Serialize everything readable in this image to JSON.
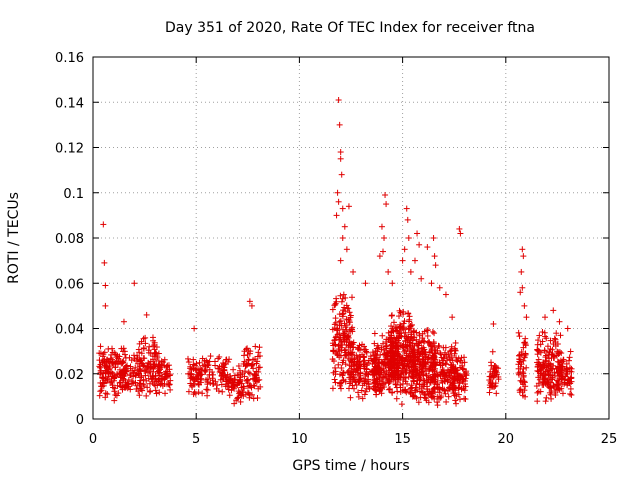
{
  "chart_data": {
    "type": "scatter",
    "title": "Day 351 of 2020, Rate Of TEC Index for receiver ftna",
    "xlabel": "GPS time / hours",
    "ylabel": "ROTI / TECUs",
    "xlim": [
      0,
      25
    ],
    "ylim": [
      0,
      0.16
    ],
    "xticks": [
      0,
      5,
      10,
      15,
      20,
      25
    ],
    "xtick_labels": [
      "0",
      "5",
      "10",
      "15",
      "20",
      "25"
    ],
    "yticks": [
      0,
      0.02,
      0.04,
      0.06,
      0.08,
      0.1,
      0.12,
      0.14,
      0.16
    ],
    "ytick_labels": [
      "0",
      "0.02",
      "0.04",
      "0.06",
      "0.08",
      "0.1",
      "0.12",
      "0.14",
      "0.16"
    ],
    "grid": true,
    "marker": "plus",
    "color": "#e00000",
    "clusters": [
      {
        "x": [
          0.3,
          1.6
        ],
        "y": [
          0.008,
          0.034
        ],
        "n": 160
      },
      {
        "x": [
          1.6,
          2.2
        ],
        "y": [
          0.01,
          0.03
        ],
        "n": 40
      },
      {
        "x": [
          2.2,
          3.1
        ],
        "y": [
          0.007,
          0.04
        ],
        "n": 110
      },
      {
        "x": [
          3.1,
          3.8
        ],
        "y": [
          0.01,
          0.03
        ],
        "n": 60
      },
      {
        "x": [
          4.6,
          5.4
        ],
        "y": [
          0.008,
          0.028
        ],
        "n": 60
      },
      {
        "x": [
          5.4,
          6.6
        ],
        "y": [
          0.008,
          0.03
        ],
        "n": 80
      },
      {
        "x": [
          6.6,
          7.3
        ],
        "y": [
          0.006,
          0.024
        ],
        "n": 50
      },
      {
        "x": [
          7.2,
          8.1
        ],
        "y": [
          0.008,
          0.035
        ],
        "n": 80
      },
      {
        "x": [
          11.6,
          12.6
        ],
        "y": [
          0.008,
          0.06
        ],
        "n": 160
      },
      {
        "x": [
          12.4,
          13.8
        ],
        "y": [
          0.008,
          0.035
        ],
        "n": 160
      },
      {
        "x": [
          13.6,
          14.8
        ],
        "y": [
          0.008,
          0.04
        ],
        "n": 180
      },
      {
        "x": [
          14.4,
          15.6
        ],
        "y": [
          0.006,
          0.05
        ],
        "n": 260
      },
      {
        "x": [
          15.4,
          16.6
        ],
        "y": [
          0.006,
          0.042
        ],
        "n": 220
      },
      {
        "x": [
          16.4,
          17.6
        ],
        "y": [
          0.005,
          0.035
        ],
        "n": 160
      },
      {
        "x": [
          17.4,
          18.1
        ],
        "y": [
          0.006,
          0.03
        ],
        "n": 70
      },
      {
        "x": [
          19.2,
          19.7
        ],
        "y": [
          0.01,
          0.03
        ],
        "n": 40
      },
      {
        "x": [
          20.6,
          21.0
        ],
        "y": [
          0.008,
          0.04
        ],
        "n": 50
      },
      {
        "x": [
          21.5,
          22.8
        ],
        "y": [
          0.006,
          0.04
        ],
        "n": 200
      },
      {
        "x": [
          22.8,
          23.2
        ],
        "y": [
          0.008,
          0.03
        ],
        "n": 40
      }
    ],
    "outliers": [
      {
        "x": 0.5,
        "y": 0.086
      },
      {
        "x": 0.55,
        "y": 0.069
      },
      {
        "x": 0.6,
        "y": 0.059
      },
      {
        "x": 0.6,
        "y": 0.05
      },
      {
        "x": 2.0,
        "y": 0.06
      },
      {
        "x": 1.5,
        "y": 0.043
      },
      {
        "x": 2.6,
        "y": 0.046
      },
      {
        "x": 4.9,
        "y": 0.04
      },
      {
        "x": 7.6,
        "y": 0.052
      },
      {
        "x": 7.7,
        "y": 0.05
      },
      {
        "x": 11.9,
        "y": 0.141
      },
      {
        "x": 11.95,
        "y": 0.13
      },
      {
        "x": 12.0,
        "y": 0.118
      },
      {
        "x": 12.0,
        "y": 0.115
      },
      {
        "x": 12.05,
        "y": 0.108
      },
      {
        "x": 11.85,
        "y": 0.1
      },
      {
        "x": 11.9,
        "y": 0.096
      },
      {
        "x": 12.1,
        "y": 0.093
      },
      {
        "x": 11.8,
        "y": 0.09
      },
      {
        "x": 12.2,
        "y": 0.085
      },
      {
        "x": 12.1,
        "y": 0.08
      },
      {
        "x": 12.3,
        "y": 0.075
      },
      {
        "x": 12.0,
        "y": 0.07
      },
      {
        "x": 12.4,
        "y": 0.094
      },
      {
        "x": 12.6,
        "y": 0.065
      },
      {
        "x": 13.2,
        "y": 0.06
      },
      {
        "x": 14.15,
        "y": 0.099
      },
      {
        "x": 14.2,
        "y": 0.095
      },
      {
        "x": 14.0,
        "y": 0.085
      },
      {
        "x": 14.1,
        "y": 0.08
      },
      {
        "x": 14.05,
        "y": 0.074
      },
      {
        "x": 13.9,
        "y": 0.072
      },
      {
        "x": 14.3,
        "y": 0.065
      },
      {
        "x": 14.5,
        "y": 0.06
      },
      {
        "x": 15.2,
        "y": 0.093
      },
      {
        "x": 15.25,
        "y": 0.088
      },
      {
        "x": 15.3,
        "y": 0.08
      },
      {
        "x": 15.1,
        "y": 0.075
      },
      {
        "x": 15.0,
        "y": 0.07
      },
      {
        "x": 15.4,
        "y": 0.065
      },
      {
        "x": 15.7,
        "y": 0.082
      },
      {
        "x": 15.8,
        "y": 0.077
      },
      {
        "x": 15.6,
        "y": 0.07
      },
      {
        "x": 15.9,
        "y": 0.062
      },
      {
        "x": 16.2,
        "y": 0.076
      },
      {
        "x": 16.5,
        "y": 0.08
      },
      {
        "x": 16.55,
        "y": 0.072
      },
      {
        "x": 16.6,
        "y": 0.068
      },
      {
        "x": 16.4,
        "y": 0.06
      },
      {
        "x": 16.8,
        "y": 0.058
      },
      {
        "x": 17.1,
        "y": 0.055
      },
      {
        "x": 17.4,
        "y": 0.045
      },
      {
        "x": 17.75,
        "y": 0.084
      },
      {
        "x": 17.8,
        "y": 0.082
      },
      {
        "x": 19.4,
        "y": 0.042
      },
      {
        "x": 20.8,
        "y": 0.075
      },
      {
        "x": 20.85,
        "y": 0.072
      },
      {
        "x": 20.75,
        "y": 0.065
      },
      {
        "x": 20.8,
        "y": 0.058
      },
      {
        "x": 20.7,
        "y": 0.056
      },
      {
        "x": 20.9,
        "y": 0.05
      },
      {
        "x": 21.0,
        "y": 0.045
      },
      {
        "x": 21.9,
        "y": 0.045
      },
      {
        "x": 22.3,
        "y": 0.048
      },
      {
        "x": 22.6,
        "y": 0.043
      },
      {
        "x": 23.0,
        "y": 0.04
      }
    ]
  }
}
